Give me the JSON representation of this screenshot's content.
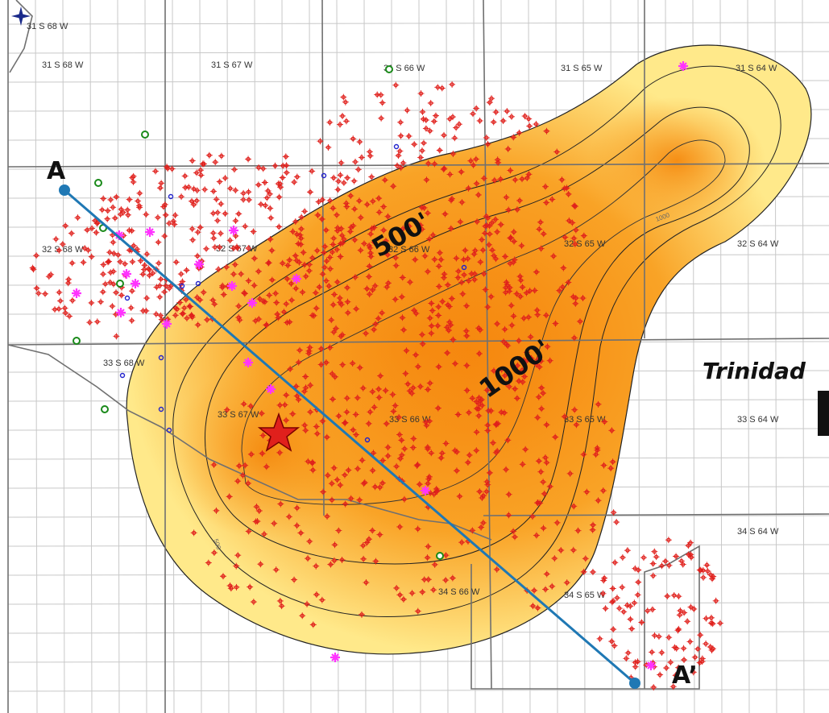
{
  "map": {
    "township_labels": [
      "31 S 68 W",
      "31 S 68 W",
      "31 S 67 W",
      "31 S 66 W",
      "31 S 65 W",
      "31 S 64 W",
      "32 S 68 W",
      "32 S 67 W",
      "32 S 66 W",
      "32 S 65 W",
      "32 S 64 W",
      "33 S 68 W",
      "33 S 67 W",
      "33 S 66 W",
      "33 S 65 W",
      "33 S 64 W",
      "34 S 66 W",
      "34 S 65 W",
      "34 S 64 W"
    ],
    "contour_labels": {
      "c500": "500'",
      "c1000": "1000'",
      "tick500": "500",
      "tick1000": "1000"
    },
    "place_label": "Trinidad",
    "section_line": {
      "start_label": "A",
      "end_label": "A’",
      "color": "#1f78b4"
    },
    "colors": {
      "isopach_fill_core": "#f08a0a",
      "isopach_fill_edge": "#ffe98a",
      "well_symbol": "#e0201c",
      "highlight_well": "#ff33ff",
      "star": "#e0201c",
      "grid": "#c8c8c8",
      "township_line": "#707070"
    },
    "icons": {
      "north_arrow": "compass-rose-icon",
      "well": "well-symbol-icon",
      "location": "star-icon"
    }
  }
}
